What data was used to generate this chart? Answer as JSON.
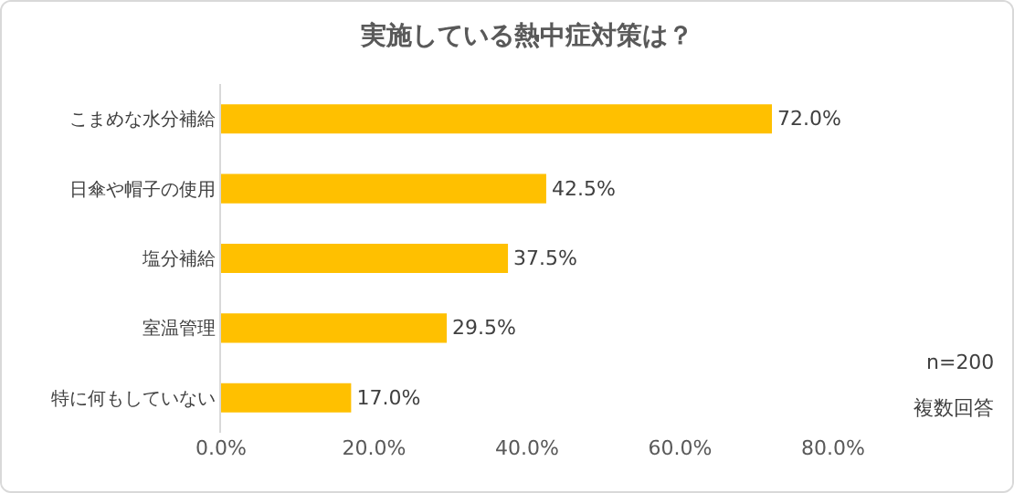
{
  "chart_data": {
    "type": "bar",
    "orientation": "horizontal",
    "title": "実施している熱中症対策は？",
    "categories": [
      "こまめな水分補給",
      "日傘や帽子の使用",
      "塩分補給",
      "室温管理",
      "特に何もしていない"
    ],
    "values": [
      72.0,
      42.5,
      37.5,
      29.5,
      17.0
    ],
    "value_labels": [
      "72.0%",
      "42.5%",
      "37.5%",
      "29.5%",
      "17.0%"
    ],
    "color": "#ffc000",
    "xlim": [
      0,
      80
    ],
    "xticks": [
      {
        "value": 0,
        "label": "0.0%"
      },
      {
        "value": 20,
        "label": "20.0%"
      },
      {
        "value": 40,
        "label": "40.0%"
      },
      {
        "value": 60,
        "label": "60.0%"
      },
      {
        "value": 80,
        "label": "80.0%"
      }
    ],
    "grid": false,
    "legend": false,
    "annotations": [
      "n=200",
      "複数回答"
    ]
  }
}
